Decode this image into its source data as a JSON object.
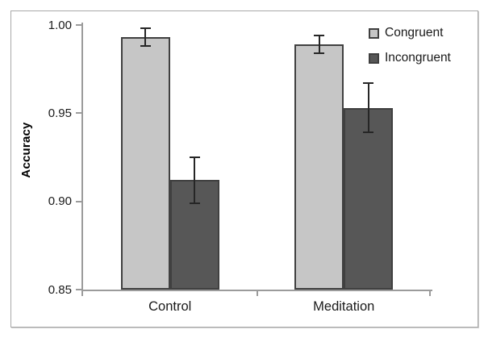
{
  "chart_data": {
    "type": "bar",
    "title": "",
    "ylabel": "Accuracy",
    "xlabel": "",
    "categories": [
      "Control",
      "Meditation"
    ],
    "series": [
      {
        "name": "Congruent",
        "color": "#c6c6c6",
        "values": [
          0.993,
          0.989
        ],
        "errors": [
          0.005,
          0.005
        ]
      },
      {
        "name": "Incongruent",
        "color": "#575757",
        "values": [
          0.912,
          0.953
        ],
        "errors": [
          0.013,
          0.014
        ]
      }
    ],
    "ylim": [
      0.85,
      1.0
    ],
    "yticks": [
      {
        "value": 1.0,
        "label": "1.00"
      },
      {
        "value": 0.95,
        "label": "0.95"
      },
      {
        "value": 0.9,
        "label": "0.90"
      },
      {
        "value": 0.85,
        "label": "0.85"
      }
    ],
    "error_bars": true,
    "grid": false,
    "legend_position": "top-right",
    "style": {
      "bar_fill_light": "#c6c6c6",
      "bar_fill_dark": "#575757",
      "bar_border": "#404040",
      "error_color": "#262626",
      "axis_color": "#9b9b9b",
      "text_color": "#1a1a1a",
      "frame_border": "#a8a8a8"
    }
  }
}
